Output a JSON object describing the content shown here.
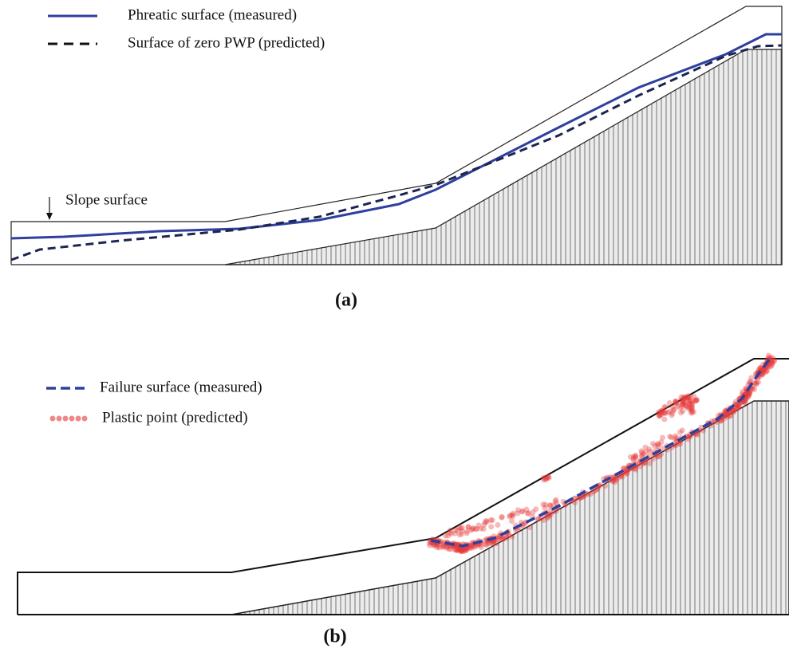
{
  "panel_a": {
    "legend": [
      "Phreatic surface (measured)",
      "Surface of zero PWP (predicted)"
    ],
    "annotation": "Slope surface",
    "label": "(a)"
  },
  "panel_b": {
    "legend": [
      "Failure surface (measured)",
      "Plastic point (predicted)"
    ],
    "label": "(b)"
  }
}
